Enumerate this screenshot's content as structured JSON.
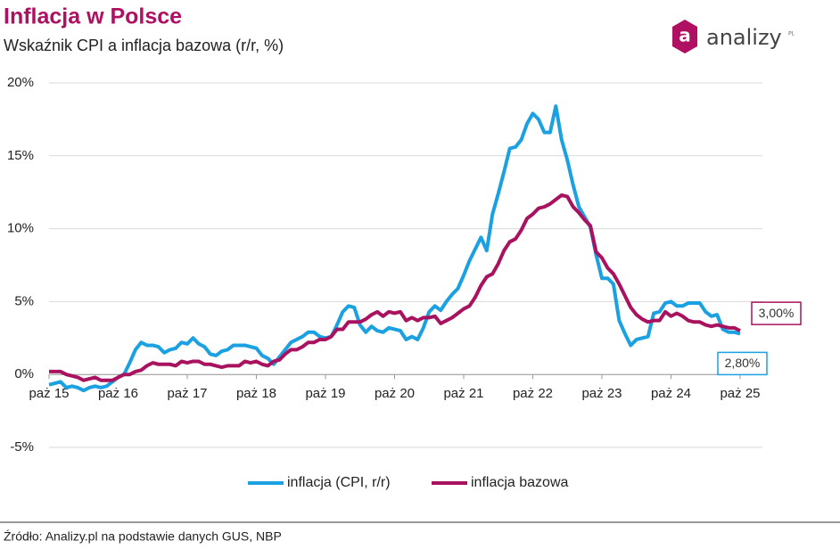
{
  "chart_data": {
    "type": "line",
    "title": "Inflacja w Polsce",
    "subtitle": "Wskaźnik CPI a inflacja bazowa (r/r, %)",
    "source": "Źródło: Analizy.pl na podstawie danych GUS, NBP",
    "categories": [
      "paż 15",
      null,
      null,
      null,
      null,
      null,
      null,
      null,
      null,
      null,
      null,
      null,
      "paż 16",
      null,
      null,
      null,
      null,
      null,
      null,
      null,
      null,
      null,
      null,
      null,
      "paż 17",
      null,
      null,
      null,
      null,
      null,
      null,
      null,
      null,
      null,
      null,
      null,
      "paż 18",
      null,
      null,
      null,
      null,
      null,
      null,
      null,
      null,
      null,
      null,
      null,
      "paż 19",
      null,
      null,
      null,
      null,
      null,
      null,
      null,
      null,
      null,
      null,
      null,
      "paż 20",
      null,
      null,
      null,
      null,
      null,
      null,
      null,
      null,
      null,
      null,
      null,
      "paż 21",
      null,
      null,
      null,
      null,
      null,
      null,
      null,
      null,
      null,
      null,
      null,
      "paż 22",
      null,
      null,
      null,
      null,
      null,
      null,
      null,
      null,
      null,
      null,
      null,
      "paż 23",
      null,
      null,
      null,
      null,
      null,
      null,
      null,
      null,
      null,
      null,
      null,
      "paż 24",
      null,
      null,
      null,
      null,
      null,
      null,
      null,
      null,
      null,
      null,
      null,
      "paż 25"
    ],
    "series": [
      {
        "name": "inflacja (CPI, r/r)",
        "color": "#1ba1e2",
        "values": [
          -0.7,
          -0.6,
          -0.5,
          -0.9,
          -0.8,
          -0.9,
          -1.1,
          -0.9,
          -0.8,
          -0.9,
          -0.8,
          -0.5,
          -0.2,
          0.0,
          0.8,
          1.7,
          2.2,
          2.0,
          2.0,
          1.9,
          1.5,
          1.7,
          1.8,
          2.2,
          2.1,
          2.5,
          2.1,
          1.9,
          1.4,
          1.3,
          1.6,
          1.7,
          2.0,
          2.0,
          2.0,
          1.9,
          1.8,
          1.3,
          1.1,
          0.7,
          1.2,
          1.7,
          2.2,
          2.4,
          2.6,
          2.9,
          2.9,
          2.6,
          2.5,
          2.6,
          3.4,
          4.3,
          4.7,
          4.6,
          3.4,
          2.9,
          3.3,
          3.0,
          2.9,
          3.2,
          3.1,
          3.0,
          2.4,
          2.6,
          2.4,
          3.2,
          4.3,
          4.7,
          4.4,
          5.0,
          5.5,
          5.9,
          6.8,
          7.8,
          8.6,
          9.4,
          8.5,
          11.0,
          12.4,
          13.9,
          15.5,
          15.6,
          16.1,
          17.2,
          17.9,
          17.5,
          16.6,
          16.6,
          18.4,
          16.1,
          14.7,
          13.0,
          11.5,
          10.8,
          10.1,
          8.2,
          6.6,
          6.6,
          6.2,
          3.7,
          2.8,
          2.0,
          2.4,
          2.5,
          2.6,
          4.2,
          4.3,
          4.9,
          5.0,
          4.7,
          4.7,
          4.9,
          4.9,
          4.9,
          4.3,
          4.0,
          4.1,
          3.1,
          2.9,
          2.9,
          2.8
        ],
        "value_labels": [
          null,
          null,
          null,
          null,
          null,
          null,
          null,
          null,
          null,
          null,
          null,
          null,
          null,
          null,
          null,
          null,
          null,
          null,
          null,
          null,
          null,
          null,
          null,
          null,
          null,
          null,
          null,
          null,
          null,
          null,
          null,
          null,
          null,
          null,
          null,
          null,
          null,
          null,
          null,
          null,
          null,
          null,
          null,
          null,
          null,
          null,
          null,
          null,
          null,
          null,
          null,
          null,
          null,
          null,
          null,
          null,
          null,
          null,
          null,
          null,
          null,
          null,
          null,
          null,
          null,
          null,
          null,
          null,
          null,
          null,
          null,
          null,
          null,
          null,
          null,
          null,
          null,
          null,
          null,
          null,
          null,
          null,
          null,
          null,
          null,
          null,
          null,
          null,
          null,
          null,
          null,
          null,
          null,
          null,
          null,
          null,
          null,
          null,
          null,
          null,
          null,
          null,
          null,
          null,
          null,
          null,
          null,
          null,
          null,
          null,
          null,
          null,
          null,
          null,
          null,
          null,
          null,
          null,
          null,
          null,
          "2,80%"
        ]
      },
      {
        "name": "inflacja bazowa",
        "color": "#a8125e",
        "values": [
          0.2,
          0.2,
          0.2,
          0.0,
          -0.1,
          -0.2,
          -0.4,
          -0.3,
          -0.2,
          -0.4,
          -0.4,
          -0.4,
          -0.2,
          0.0,
          0.0,
          0.2,
          0.3,
          0.6,
          0.8,
          0.7,
          0.7,
          0.7,
          0.6,
          0.9,
          0.8,
          0.9,
          0.9,
          0.7,
          0.7,
          0.6,
          0.5,
          0.6,
          0.6,
          0.6,
          0.9,
          0.8,
          0.9,
          0.7,
          0.6,
          0.9,
          1.0,
          1.4,
          1.7,
          1.7,
          1.9,
          2.2,
          2.2,
          2.4,
          2.4,
          2.6,
          3.1,
          3.1,
          3.6,
          3.6,
          3.6,
          3.8,
          4.1,
          4.3,
          4.0,
          4.3,
          4.2,
          4.3,
          3.7,
          3.9,
          3.7,
          3.9,
          3.9,
          4.0,
          3.5,
          3.7,
          3.9,
          4.2,
          4.5,
          4.7,
          5.3,
          6.1,
          6.7,
          6.9,
          7.6,
          8.5,
          9.1,
          9.3,
          9.9,
          10.7,
          11.0,
          11.4,
          11.5,
          11.7,
          12.0,
          12.3,
          12.2,
          11.5,
          11.1,
          10.6,
          10.2,
          8.4,
          8.0,
          7.3,
          6.9,
          6.2,
          5.4,
          4.6,
          4.1,
          3.8,
          3.6,
          3.7,
          3.7,
          4.3,
          4.0,
          4.2,
          4.0,
          3.7,
          3.6,
          3.6,
          3.4,
          3.3,
          3.4,
          3.3,
          3.2,
          3.2,
          3.0
        ],
        "value_labels": [
          null,
          null,
          null,
          null,
          null,
          null,
          null,
          null,
          null,
          null,
          null,
          null,
          null,
          null,
          null,
          null,
          null,
          null,
          null,
          null,
          null,
          null,
          null,
          null,
          null,
          null,
          null,
          null,
          null,
          null,
          null,
          null,
          null,
          null,
          null,
          null,
          null,
          null,
          null,
          null,
          null,
          null,
          null,
          null,
          null,
          null,
          null,
          null,
          null,
          null,
          null,
          null,
          null,
          null,
          null,
          null,
          null,
          null,
          null,
          null,
          null,
          null,
          null,
          null,
          null,
          null,
          null,
          null,
          null,
          null,
          null,
          null,
          null,
          null,
          null,
          null,
          null,
          null,
          null,
          null,
          null,
          null,
          null,
          null,
          null,
          null,
          null,
          null,
          null,
          null,
          null,
          null,
          null,
          null,
          null,
          null,
          null,
          null,
          null,
          null,
          null,
          null,
          null,
          null,
          null,
          null,
          null,
          null,
          null,
          null,
          null,
          null,
          null,
          null,
          null,
          null,
          null,
          null,
          null,
          null,
          "3,00%"
        ]
      }
    ],
    "ylim": [
      -5,
      20
    ],
    "yticks": [
      {
        "value": -5,
        "label": "-5%"
      },
      {
        "value": 0,
        "label": "0%"
      },
      {
        "value": 5,
        "label": "5%"
      },
      {
        "value": 10,
        "label": "10%"
      },
      {
        "value": 15,
        "label": "15%"
      },
      {
        "value": 20,
        "label": "20%"
      }
    ],
    "grid": true,
    "legend": "bottom"
  },
  "logo": {
    "mark": "a",
    "name": "analizy",
    "suffix": "PL"
  }
}
